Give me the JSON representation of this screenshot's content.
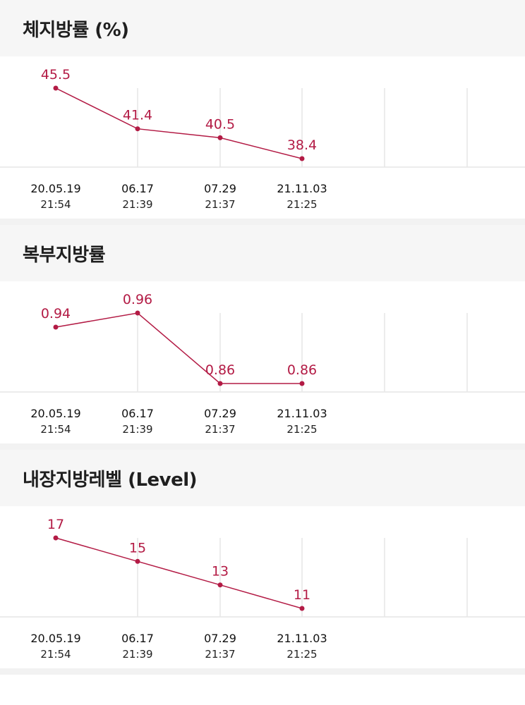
{
  "accent_color": "#b31b45",
  "grid_color": "#e6e6e6",
  "chart_data": [
    {
      "type": "line",
      "title": "체지방률 (%)",
      "categories": [
        "20.05.19",
        "06.17",
        "07.29",
        "21.11.03"
      ],
      "times": [
        "21:54",
        "21:39",
        "21:37",
        "21:25"
      ],
      "values": [
        45.5,
        41.4,
        40.5,
        38.4
      ],
      "value_labels": [
        "45.5",
        "41.4",
        "40.5",
        "38.4"
      ],
      "ylim": [
        38.4,
        45.5
      ],
      "grid": true
    },
    {
      "type": "line",
      "title": "복부지방률",
      "categories": [
        "20.05.19",
        "06.17",
        "07.29",
        "21.11.03"
      ],
      "times": [
        "21:54",
        "21:39",
        "21:37",
        "21:25"
      ],
      "values": [
        0.94,
        0.96,
        0.86,
        0.86
      ],
      "value_labels": [
        "0.94",
        "0.96",
        "0.86",
        "0.86"
      ],
      "ylim": [
        0.86,
        0.96
      ],
      "grid": true
    },
    {
      "type": "line",
      "title": "내장지방레벨 (Level)",
      "categories": [
        "20.05.19",
        "06.17",
        "07.29",
        "21.11.03"
      ],
      "times": [
        "21:54",
        "21:39",
        "21:37",
        "21:25"
      ],
      "values": [
        17,
        15,
        13,
        11
      ],
      "value_labels": [
        "17",
        "15",
        "13",
        "11"
      ],
      "ylim": [
        11,
        17
      ],
      "grid": true
    }
  ]
}
